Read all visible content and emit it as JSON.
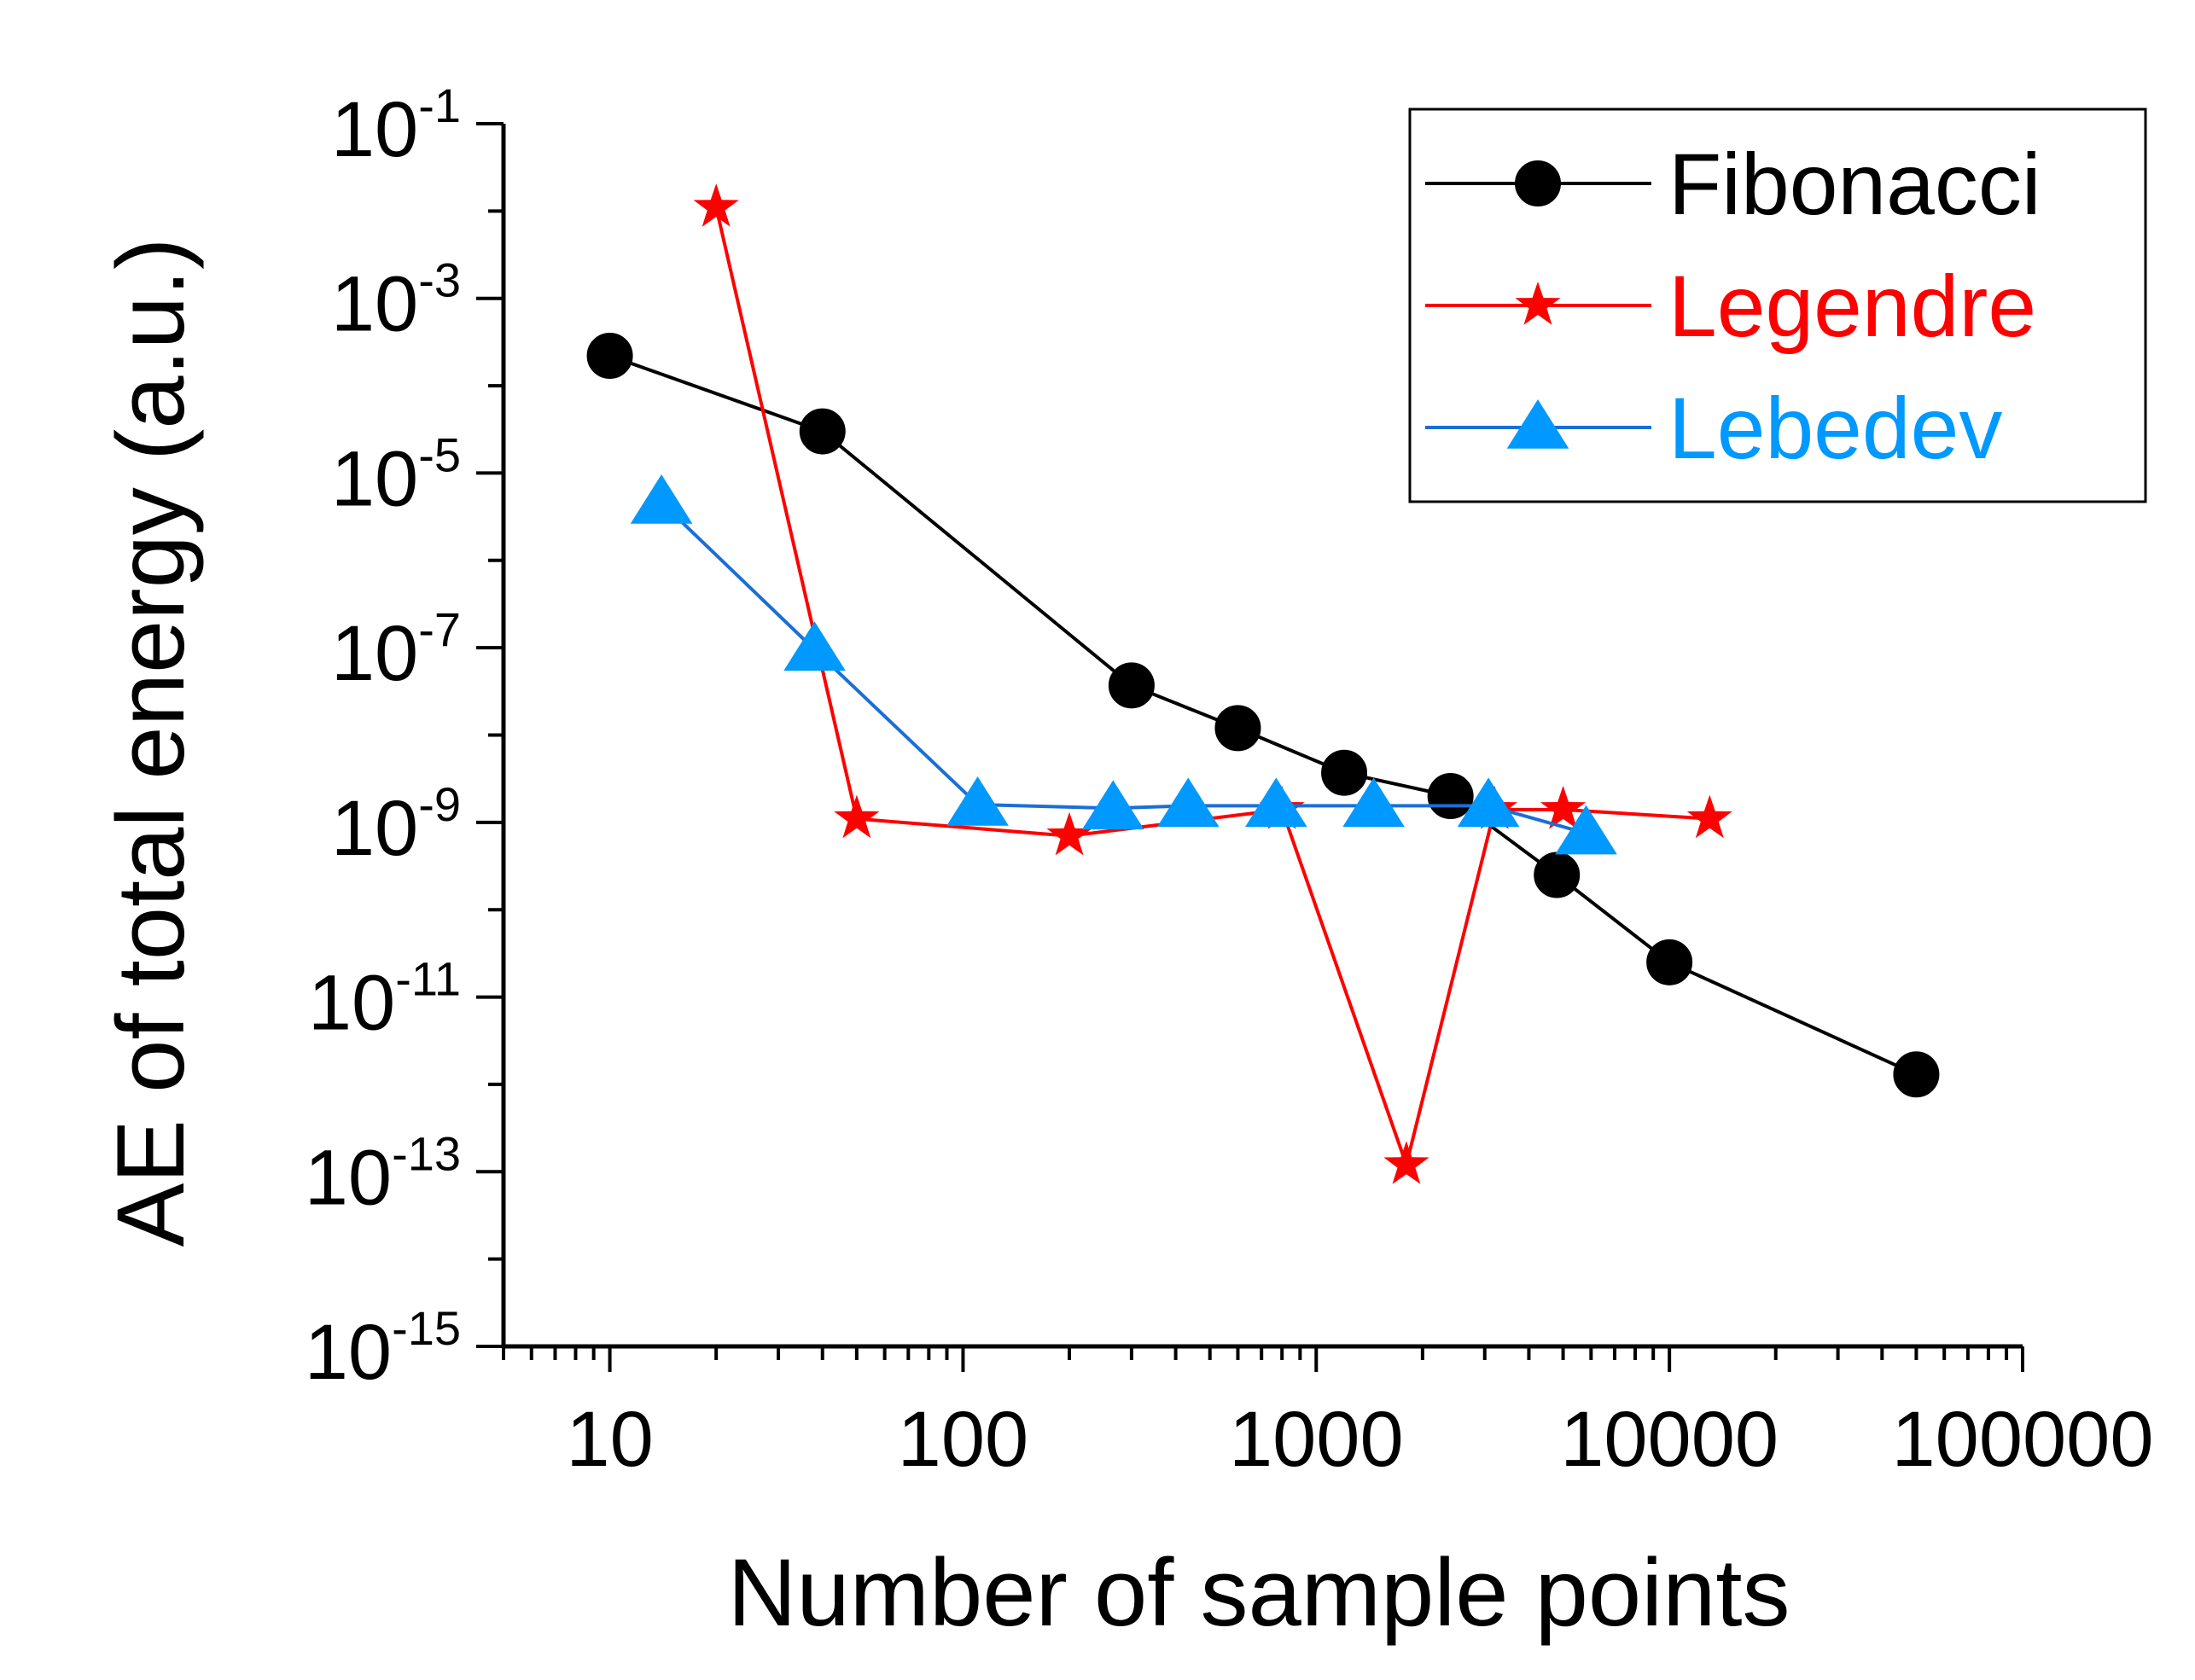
{
  "chart_data": {
    "type": "line",
    "title": "",
    "xlabel": "Number of sample points",
    "ylabel": "AE of total energy (a.u.)",
    "x_scale": "log",
    "y_scale": "log",
    "xlim": [
      5,
      100000
    ],
    "ylim": [
      1e-15,
      0.1
    ],
    "x_tick_labels": [
      "10",
      "100",
      "1000",
      "10000",
      "100000"
    ],
    "y_tick_labels": [
      {
        "base": "10",
        "exp": "-1"
      },
      {
        "base": "10",
        "exp": "-3"
      },
      {
        "base": "10",
        "exp": "-5"
      },
      {
        "base": "10",
        "exp": "-7"
      },
      {
        "base": "10",
        "exp": "-9"
      },
      {
        "base": "10",
        "exp": "-11"
      },
      {
        "base": "10",
        "exp": "-13"
      },
      {
        "base": "10",
        "exp": "-15"
      }
    ],
    "legend_position": "top-right",
    "series": [
      {
        "name": "Fibonacci",
        "color": "#000000",
        "marker": "circle",
        "x": [
          10,
          40,
          300,
          600,
          1200,
          2400,
          4800,
          10000,
          50000
        ],
        "y": [
          0.00022,
          3e-05,
          3.7e-08,
          1.2e-08,
          3.7e-09,
          2e-09,
          2.5e-10,
          2.5e-11,
          1.3e-12
        ]
      },
      {
        "name": "Legendre",
        "color": "#ff0000",
        "marker": "star",
        "x": [
          20,
          50,
          200,
          800,
          1800,
          3200,
          5000,
          13000
        ],
        "y": [
          0.011,
          1.1e-09,
          7e-10,
          1.4e-09,
          1.2e-13,
          1.4e-09,
          1.4e-09,
          1.1e-09
        ]
      },
      {
        "name": "Lebedev",
        "color": "#0099ff",
        "line_color": "#1a6fd6",
        "marker": "triangle",
        "x": [
          14,
          38,
          110,
          266,
          434,
          770,
          1454,
          3074,
          5810
        ],
        "y": [
          4.6e-06,
          9.5e-08,
          1.6e-09,
          1.45e-09,
          1.55e-09,
          1.55e-09,
          1.55e-09,
          1.55e-09,
          7.5e-10
        ]
      }
    ]
  }
}
